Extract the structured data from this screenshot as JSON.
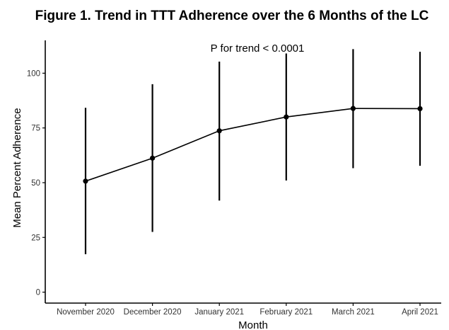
{
  "chart_data": {
    "type": "line",
    "title": "Figure 1. Trend in TTT Adherence over the 6 Months of the LC",
    "annotation": "P for trend < 0.0001",
    "xlabel": "Month",
    "ylabel": "Mean Percent Adherence",
    "categories": [
      "November 2020",
      "December 2020",
      "January 2021",
      "February 2021",
      "March 2021",
      "April 2021"
    ],
    "series": [
      {
        "values": [
          50.7,
          61.2,
          73.7,
          80.0,
          83.9,
          83.8
        ],
        "error_low": [
          17.3,
          27.5,
          41.8,
          51.0,
          56.6,
          57.7
        ],
        "error_high": [
          84.2,
          95.0,
          105.3,
          109.0,
          111.0,
          109.8
        ]
      }
    ],
    "ylim": [
      -5,
      115
    ],
    "yticks": [
      0,
      25,
      50,
      75,
      100
    ],
    "grid": false,
    "legend": "none",
    "colors": {
      "line": "#000000",
      "axis": "#000000",
      "tick_label": "#333333"
    }
  }
}
